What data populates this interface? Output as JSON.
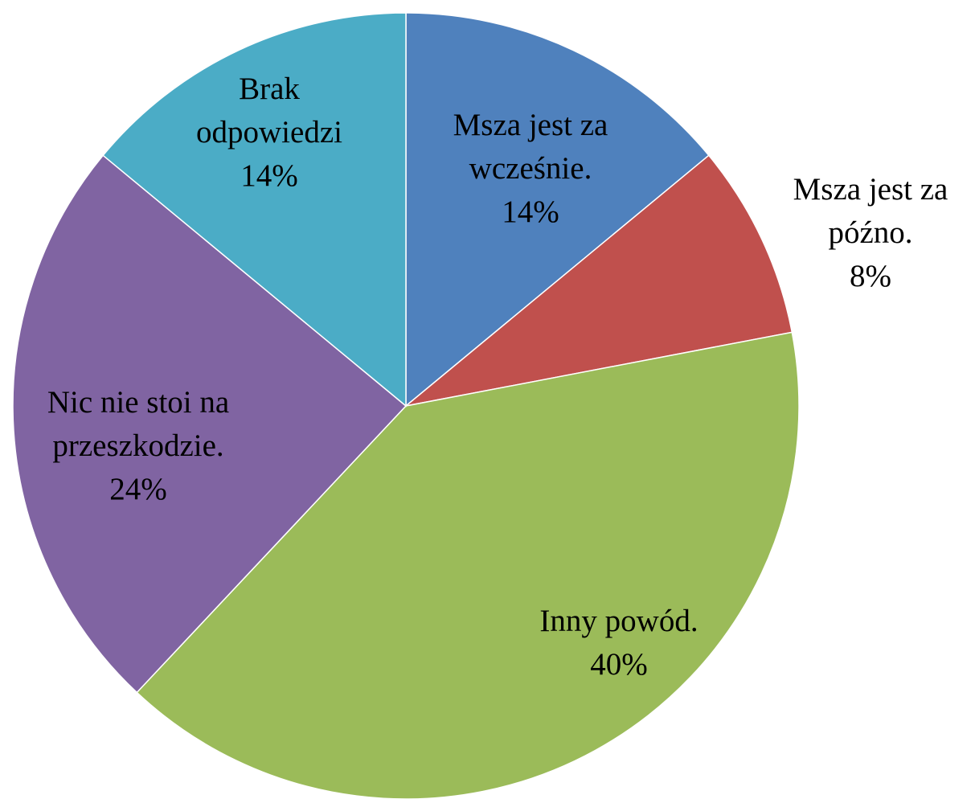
{
  "chart_data": {
    "type": "pie",
    "categories": [
      "Msza jest za wcześnie.",
      "Msza jest za późno.",
      "Inny powód.",
      "Nic nie stoi na przeszkodzie.",
      "Brak odpowiedzi"
    ],
    "values": [
      14,
      8,
      40,
      24,
      14
    ],
    "value_labels": [
      "14%",
      "8%",
      "40%",
      "24%",
      "14%"
    ],
    "colors": [
      "#4f81bd",
      "#c0504d",
      "#9bbb59",
      "#8064a2",
      "#4bacc6"
    ]
  }
}
